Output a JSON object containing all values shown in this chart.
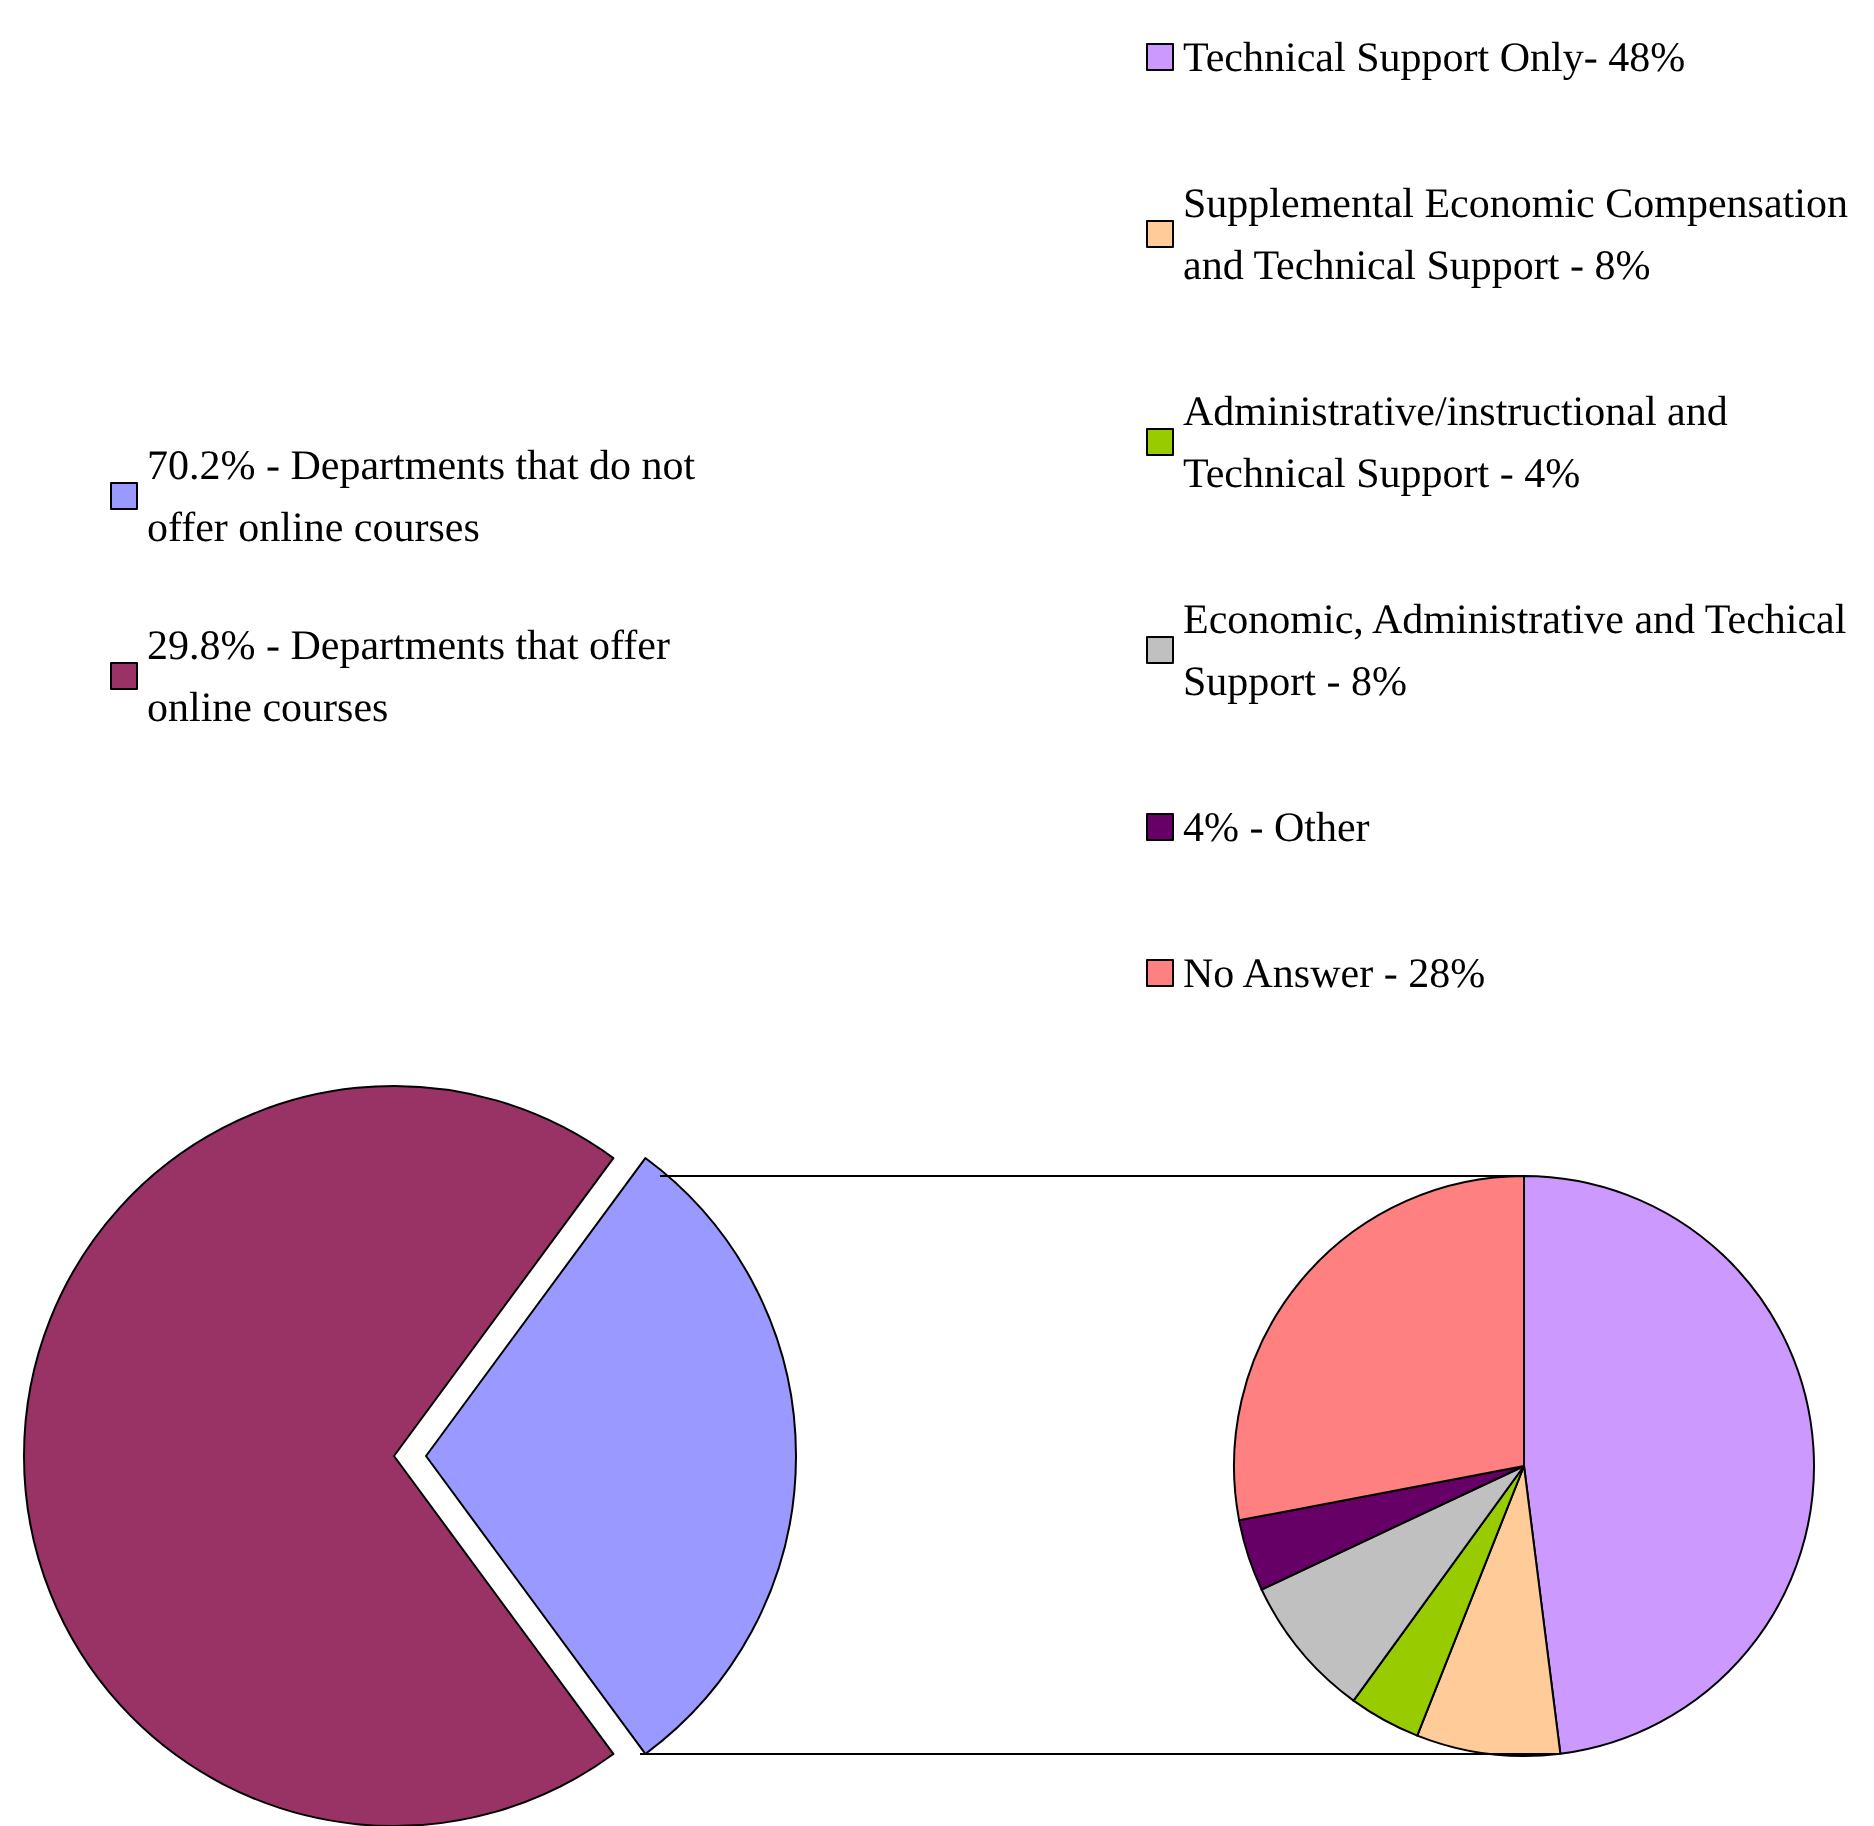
{
  "chart_data": [
    {
      "type": "pie",
      "categories": [
        "70.2% - Departments that do not offer online courses",
        "29.8% - Departments that offer online courses"
      ],
      "values": [
        29.8,
        70.2
      ],
      "colors": [
        "#9999ff",
        "#993366"
      ],
      "legend": "top left"
    },
    {
      "type": "pie",
      "categories": [
        "Technical Support Only- 48%",
        "Supplemental Economic Compensation and Technical Support - 8%",
        "Administrative/instructional and Technical Support - 4%",
        "Economic, Administrative and Techical Support - 8%",
        "4% - Other",
        "No Answer - 28%"
      ],
      "values": [
        48,
        8,
        4,
        8,
        4,
        28
      ],
      "colors": [
        "#cc99ff",
        "#ffcc99",
        "#99cc00",
        "#c0c0c0",
        "#660066",
        "#ff8080"
      ],
      "legend": "top right"
    }
  ]
}
